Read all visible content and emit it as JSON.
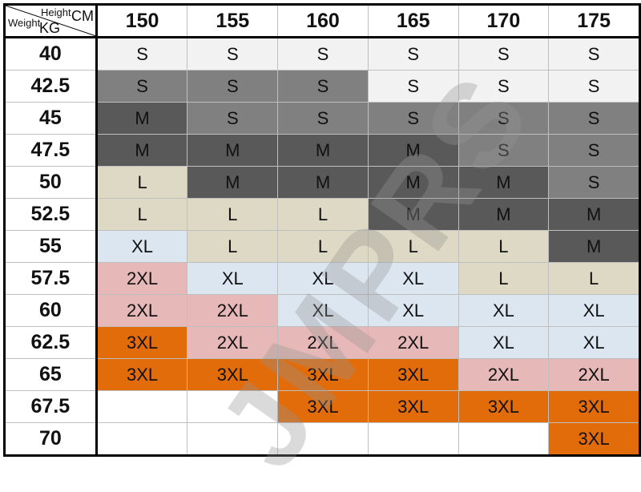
{
  "corner": {
    "height_label": "Height",
    "height_unit": "CM",
    "weight_label": "Weight",
    "weight_unit": "KG"
  },
  "heights": [
    "150",
    "155",
    "160",
    "165",
    "170",
    "175"
  ],
  "colors": {
    "lg": "#f2f2f2",
    "g": "#808080",
    "dg": "#595959",
    "b": "#ddd9c4",
    "lb": "#dce6f1",
    "p": "#e6b8b7",
    "o": "#e26b0a",
    "w": "#ffffff"
  },
  "rows": [
    {
      "weight": "40",
      "cells": [
        [
          "S",
          "lg"
        ],
        [
          "S",
          "lg"
        ],
        [
          "S",
          "lg"
        ],
        [
          "S",
          "lg"
        ],
        [
          "S",
          "lg"
        ],
        [
          "S",
          "lg"
        ]
      ]
    },
    {
      "weight": "42.5",
      "cells": [
        [
          "S",
          "g"
        ],
        [
          "S",
          "g"
        ],
        [
          "S",
          "g"
        ],
        [
          "S",
          "lg"
        ],
        [
          "S",
          "lg"
        ],
        [
          "S",
          "lg"
        ]
      ]
    },
    {
      "weight": "45",
      "cells": [
        [
          "M",
          "dg"
        ],
        [
          "S",
          "g"
        ],
        [
          "S",
          "g"
        ],
        [
          "S",
          "g"
        ],
        [
          "S",
          "g"
        ],
        [
          "S",
          "g"
        ]
      ]
    },
    {
      "weight": "47.5",
      "cells": [
        [
          "M",
          "dg"
        ],
        [
          "M",
          "dg"
        ],
        [
          "M",
          "dg"
        ],
        [
          "M",
          "dg"
        ],
        [
          "S",
          "g"
        ],
        [
          "S",
          "g"
        ]
      ]
    },
    {
      "weight": "50",
      "cells": [
        [
          "L",
          "b"
        ],
        [
          "M",
          "dg"
        ],
        [
          "M",
          "dg"
        ],
        [
          "M",
          "dg"
        ],
        [
          "M",
          "dg"
        ],
        [
          "S",
          "g"
        ]
      ]
    },
    {
      "weight": "52.5",
      "cells": [
        [
          "L",
          "b"
        ],
        [
          "L",
          "b"
        ],
        [
          "L",
          "b"
        ],
        [
          "M",
          "dg"
        ],
        [
          "M",
          "dg"
        ],
        [
          "M",
          "dg"
        ]
      ]
    },
    {
      "weight": "55",
      "cells": [
        [
          "XL",
          "lb"
        ],
        [
          "L",
          "b"
        ],
        [
          "L",
          "b"
        ],
        [
          "L",
          "b"
        ],
        [
          "L",
          "b"
        ],
        [
          "M",
          "dg"
        ]
      ]
    },
    {
      "weight": "57.5",
      "cells": [
        [
          "2XL",
          "p"
        ],
        [
          "XL",
          "lb"
        ],
        [
          "XL",
          "lb"
        ],
        [
          "XL",
          "lb"
        ],
        [
          "L",
          "b"
        ],
        [
          "L",
          "b"
        ]
      ]
    },
    {
      "weight": "60",
      "cells": [
        [
          "2XL",
          "p"
        ],
        [
          "2XL",
          "p"
        ],
        [
          "XL",
          "lb"
        ],
        [
          "XL",
          "lb"
        ],
        [
          "XL",
          "lb"
        ],
        [
          "XL",
          "lb"
        ]
      ]
    },
    {
      "weight": "62.5",
      "cells": [
        [
          "3XL",
          "o"
        ],
        [
          "2XL",
          "p"
        ],
        [
          "2XL",
          "p"
        ],
        [
          "2XL",
          "p"
        ],
        [
          "XL",
          "lb"
        ],
        [
          "XL",
          "lb"
        ]
      ]
    },
    {
      "weight": "65",
      "cells": [
        [
          "3XL",
          "o"
        ],
        [
          "3XL",
          "o"
        ],
        [
          "3XL",
          "o"
        ],
        [
          "3XL",
          "o"
        ],
        [
          "2XL",
          "p"
        ],
        [
          "2XL",
          "p"
        ]
      ]
    },
    {
      "weight": "67.5",
      "cells": [
        [
          "",
          "w"
        ],
        [
          "",
          "w"
        ],
        [
          "3XL",
          "o"
        ],
        [
          "3XL",
          "o"
        ],
        [
          "3XL",
          "o"
        ],
        [
          "3XL",
          "o"
        ]
      ]
    },
    {
      "weight": "70",
      "cells": [
        [
          "",
          "w"
        ],
        [
          "",
          "w"
        ],
        [
          "",
          "w"
        ],
        [
          "",
          "w"
        ],
        [
          "",
          "w"
        ],
        [
          "3XL",
          "o"
        ]
      ]
    }
  ],
  "watermark": "JMPRS"
}
